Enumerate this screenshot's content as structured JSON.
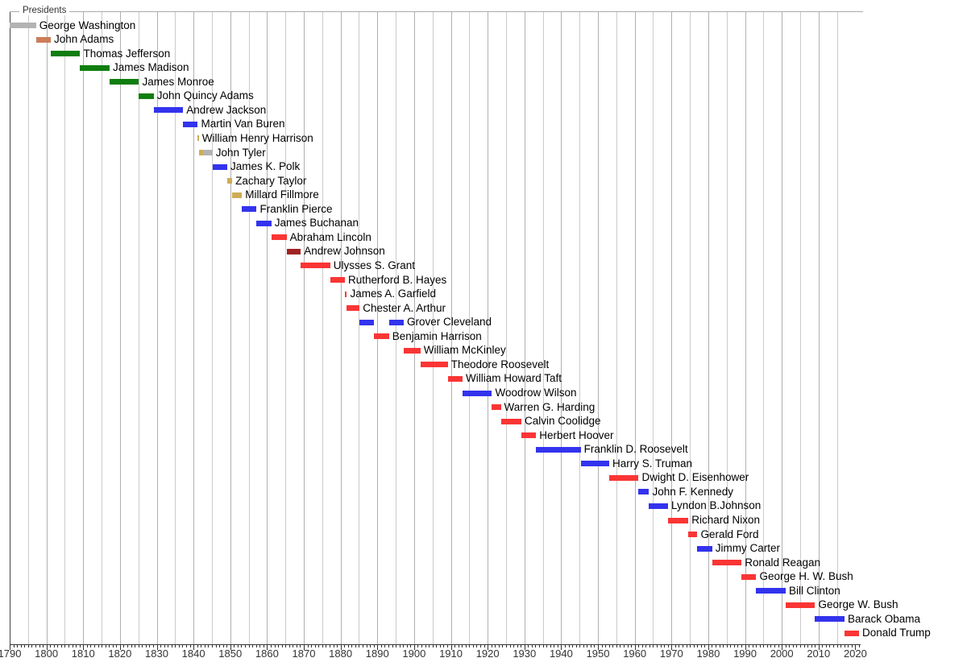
{
  "chart_data": {
    "type": "bar",
    "subtype": "gantt-timeline",
    "title": "Presidents",
    "x_axis": {
      "min": 1790,
      "max": 2021,
      "major_tick_step": 10,
      "minor_tick_step": 1,
      "gridline_step": 5,
      "tick_labels": [
        "1790",
        "1800",
        "1810",
        "1820",
        "1830",
        "1840",
        "1850",
        "1860",
        "1870",
        "1880",
        "1890",
        "1900",
        "1910",
        "1920",
        "1930",
        "1940",
        "1950",
        "1960",
        "1970",
        "1980",
        "1990",
        "2000",
        "2010",
        "2020"
      ]
    },
    "grid": "on",
    "legend": "none",
    "party_colors": {
      "independent": "#b3b3b3",
      "federalist": "#cb7d58",
      "democratic-republican": "#107d10",
      "democratic": "#3333ee",
      "whig": "#cead55",
      "republican": "#fa3535",
      "national-union": "#a02323"
    },
    "gridline_colors": {
      "decade": "#b0b0b0",
      "half_decade": "#cbcbcb"
    },
    "presidents": [
      {
        "name": "George Washington",
        "segments": [
          [
            1790.0,
            1797.17,
            "independent"
          ]
        ]
      },
      {
        "name": "John Adams",
        "segments": [
          [
            1797.17,
            1801.17,
            "federalist"
          ]
        ]
      },
      {
        "name": "Thomas Jefferson",
        "segments": [
          [
            1801.17,
            1809.17,
            "democratic-republican"
          ]
        ]
      },
      {
        "name": "James Madison",
        "segments": [
          [
            1809.17,
            1817.17,
            "democratic-republican"
          ]
        ]
      },
      {
        "name": "James Monroe",
        "segments": [
          [
            1817.17,
            1825.17,
            "democratic-republican"
          ]
        ]
      },
      {
        "name": "John Quincy Adams",
        "segments": [
          [
            1825.17,
            1829.17,
            "democratic-republican"
          ]
        ]
      },
      {
        "name": "Andrew Jackson",
        "segments": [
          [
            1829.17,
            1837.17,
            "democratic"
          ]
        ]
      },
      {
        "name": "Martin Van Buren",
        "segments": [
          [
            1837.17,
            1841.17,
            "democratic"
          ]
        ]
      },
      {
        "name": "William Henry Harrison",
        "segments": [
          [
            1841.17,
            1841.45,
            "whig"
          ]
        ]
      },
      {
        "name": "John Tyler",
        "segments": [
          [
            1841.45,
            1842.6,
            "whig"
          ],
          [
            1842.6,
            1845.17,
            "independent"
          ]
        ]
      },
      {
        "name": "James K. Polk",
        "segments": [
          [
            1845.17,
            1849.17,
            "democratic"
          ]
        ]
      },
      {
        "name": "Zachary Taylor",
        "segments": [
          [
            1849.17,
            1850.52,
            "whig"
          ]
        ]
      },
      {
        "name": "Millard Fillmore",
        "segments": [
          [
            1850.52,
            1853.17,
            "whig"
          ]
        ]
      },
      {
        "name": "Franklin Pierce",
        "segments": [
          [
            1853.17,
            1857.17,
            "democratic"
          ]
        ]
      },
      {
        "name": "James Buchanan",
        "segments": [
          [
            1857.17,
            1861.17,
            "democratic"
          ]
        ]
      },
      {
        "name": "Abraham Lincoln",
        "segments": [
          [
            1861.17,
            1865.3,
            "republican"
          ]
        ]
      },
      {
        "name": "Andrew Johnson",
        "segments": [
          [
            1865.3,
            1869.17,
            "national-union"
          ]
        ]
      },
      {
        "name": "Ulysses S. Grant",
        "segments": [
          [
            1869.17,
            1877.17,
            "republican"
          ]
        ]
      },
      {
        "name": "Rutherford B. Hayes",
        "segments": [
          [
            1877.17,
            1881.17,
            "republican"
          ]
        ]
      },
      {
        "name": "James A. Garfield",
        "segments": [
          [
            1881.17,
            1881.71,
            "republican"
          ]
        ]
      },
      {
        "name": "Chester A. Arthur",
        "segments": [
          [
            1881.71,
            1885.17,
            "republican"
          ]
        ]
      },
      {
        "name": "Grover Cleveland",
        "segments": [
          [
            1885.17,
            1889.17,
            "democratic"
          ],
          [
            1893.17,
            1897.17,
            "democratic"
          ]
        ]
      },
      {
        "name": "Benjamin Harrison",
        "segments": [
          [
            1889.17,
            1893.17,
            "republican"
          ]
        ]
      },
      {
        "name": "William McKinley",
        "segments": [
          [
            1897.17,
            1901.71,
            "republican"
          ]
        ]
      },
      {
        "name": "Theodore Roosevelt",
        "segments": [
          [
            1901.71,
            1909.17,
            "republican"
          ]
        ]
      },
      {
        "name": "William Howard Taft",
        "segments": [
          [
            1909.17,
            1913.17,
            "republican"
          ]
        ]
      },
      {
        "name": "Woodrow Wilson",
        "segments": [
          [
            1913.17,
            1921.17,
            "democratic"
          ]
        ]
      },
      {
        "name": "Warren G. Harding",
        "segments": [
          [
            1921.17,
            1923.59,
            "republican"
          ]
        ]
      },
      {
        "name": "Calvin Coolidge",
        "segments": [
          [
            1923.59,
            1929.17,
            "republican"
          ]
        ]
      },
      {
        "name": "Herbert Hoover",
        "segments": [
          [
            1929.17,
            1933.17,
            "republican"
          ]
        ]
      },
      {
        "name": "Franklin D. Roosevelt",
        "segments": [
          [
            1933.17,
            1945.3,
            "democratic"
          ]
        ]
      },
      {
        "name": "Harry S. Truman",
        "segments": [
          [
            1945.3,
            1953.05,
            "democratic"
          ]
        ]
      },
      {
        "name": "Dwight D. Eisenhower",
        "segments": [
          [
            1953.05,
            1961.05,
            "republican"
          ]
        ]
      },
      {
        "name": "John F. Kennedy",
        "segments": [
          [
            1961.05,
            1963.9,
            "democratic"
          ]
        ]
      },
      {
        "name": "Lyndon B.Johnson",
        "segments": [
          [
            1963.9,
            1969.05,
            "democratic"
          ]
        ]
      },
      {
        "name": "Richard Nixon",
        "segments": [
          [
            1969.05,
            1974.6,
            "republican"
          ]
        ]
      },
      {
        "name": "Gerald Ford",
        "segments": [
          [
            1974.6,
            1977.05,
            "republican"
          ]
        ]
      },
      {
        "name": "Jimmy Carter",
        "segments": [
          [
            1977.05,
            1981.05,
            "democratic"
          ]
        ]
      },
      {
        "name": "Ronald Reagan",
        "segments": [
          [
            1981.05,
            1989.05,
            "republican"
          ]
        ]
      },
      {
        "name": "George H. W. Bush",
        "segments": [
          [
            1989.05,
            1993.05,
            "republican"
          ]
        ]
      },
      {
        "name": "Bill Clinton",
        "segments": [
          [
            1993.05,
            2001.05,
            "democratic"
          ]
        ]
      },
      {
        "name": "George W. Bush",
        "segments": [
          [
            2001.05,
            2009.05,
            "republican"
          ]
        ]
      },
      {
        "name": "Barack Obama",
        "segments": [
          [
            2009.05,
            2017.05,
            "democratic"
          ]
        ]
      },
      {
        "name": "Donald Trump",
        "segments": [
          [
            2017.05,
            2021.0,
            "republican"
          ]
        ]
      }
    ]
  }
}
